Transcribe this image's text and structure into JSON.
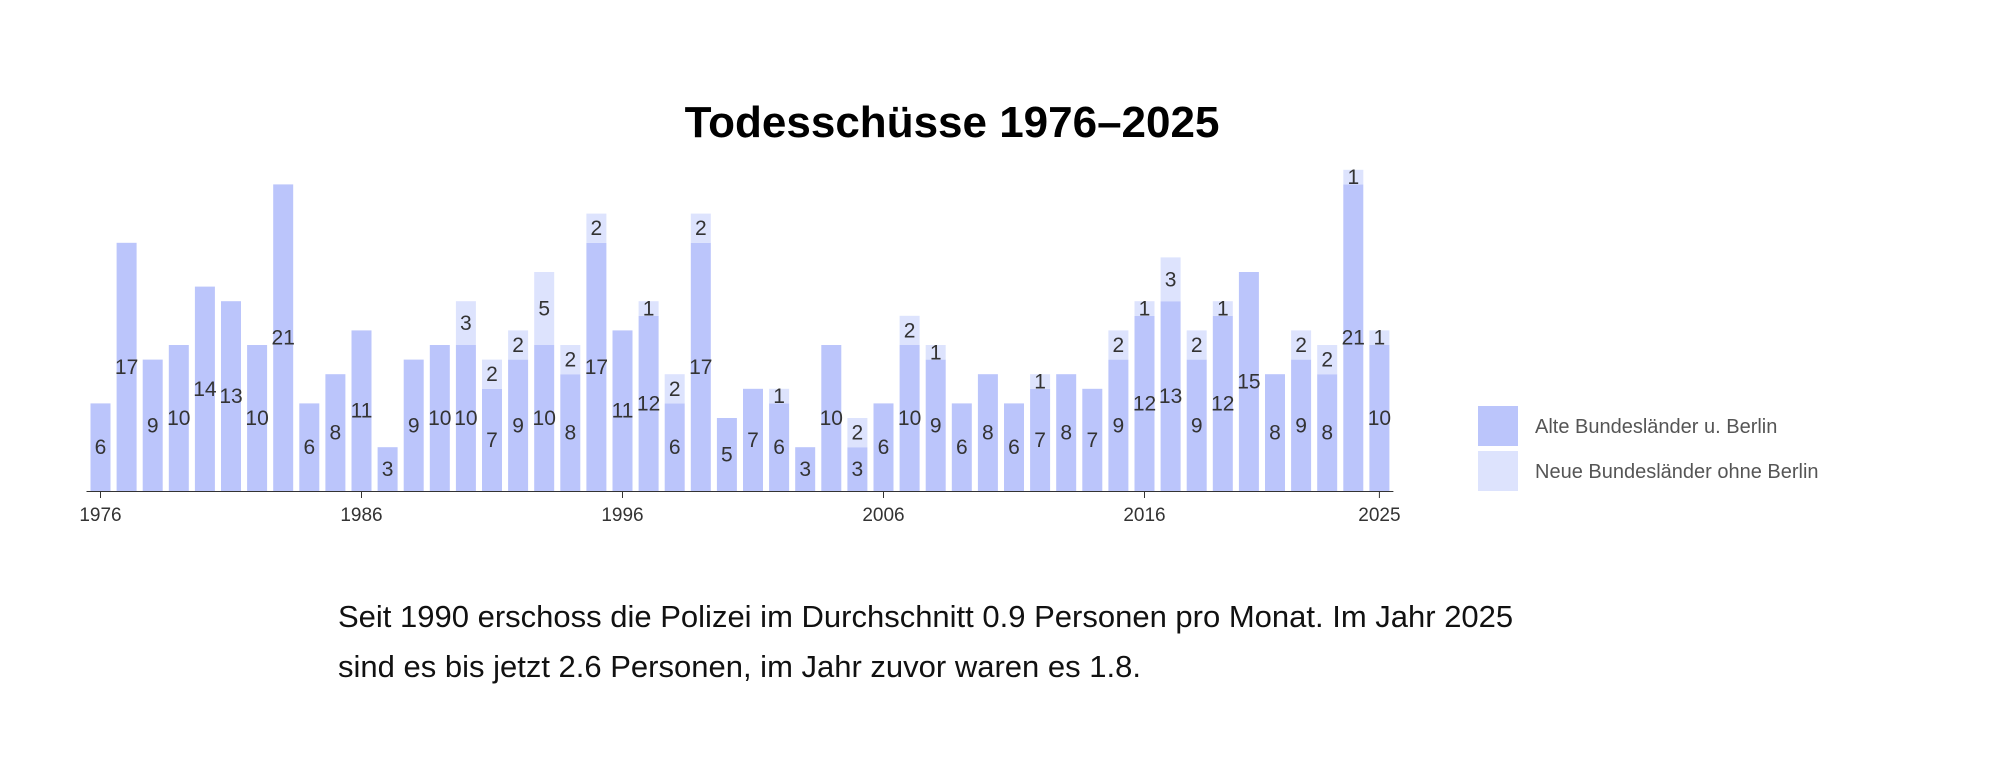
{
  "chart_data": {
    "type": "bar",
    "stacked": true,
    "title": "Todesschüsse 1976–2025",
    "x": [
      1976,
      1977,
      1978,
      1979,
      1980,
      1981,
      1982,
      1983,
      1984,
      1985,
      1986,
      1987,
      1988,
      1989,
      1990,
      1991,
      1992,
      1993,
      1994,
      1995,
      1996,
      1997,
      1998,
      1999,
      2000,
      2001,
      2002,
      2003,
      2004,
      2005,
      2006,
      2007,
      2008,
      2009,
      2010,
      2011,
      2012,
      2013,
      2014,
      2015,
      2016,
      2017,
      2018,
      2019,
      2020,
      2021,
      2022,
      2023,
      2024,
      2025
    ],
    "x_tick_labels": [
      "1976",
      "1986",
      "1996",
      "2006",
      "2016",
      "2025"
    ],
    "ylim": [
      0,
      23
    ],
    "series": [
      {
        "name": "Alte Bundesländer u. Berlin",
        "color": "#bbc5fb",
        "values": [
          6,
          17,
          9,
          10,
          14,
          13,
          10,
          21,
          6,
          8,
          11,
          3,
          9,
          10,
          10,
          7,
          9,
          10,
          8,
          17,
          11,
          12,
          6,
          17,
          5,
          7,
          6,
          3,
          10,
          3,
          6,
          10,
          9,
          6,
          8,
          6,
          7,
          8,
          7,
          9,
          12,
          13,
          9,
          12,
          15,
          8,
          9,
          8,
          21,
          10
        ]
      },
      {
        "name": "Neue Bundesländer ohne Berlin",
        "color": "#dde3fd",
        "values": [
          0,
          0,
          0,
          0,
          0,
          0,
          0,
          0,
          0,
          0,
          0,
          0,
          0,
          0,
          3,
          2,
          2,
          5,
          2,
          2,
          0,
          1,
          2,
          2,
          0,
          0,
          1,
          0,
          0,
          2,
          0,
          2,
          1,
          0,
          0,
          0,
          1,
          0,
          0,
          2,
          1,
          3,
          2,
          1,
          0,
          0,
          2,
          2,
          1,
          1
        ]
      }
    ],
    "bar_labels": {
      "Alte Bundesländer u. Berlin": [
        6,
        17,
        9,
        10,
        14,
        13,
        10,
        21,
        6,
        8,
        11,
        3,
        9,
        10,
        10,
        7,
        9,
        10,
        8,
        17,
        11,
        12,
        6,
        17,
        5,
        7,
        6,
        3,
        10,
        3,
        6,
        10,
        9,
        6,
        8,
        6,
        7,
        8,
        7,
        9,
        12,
        13,
        9,
        12,
        15,
        8,
        9,
        8,
        21,
        10
      ],
      "Neue Bundesländer ohne Berlin": [
        null,
        null,
        null,
        null,
        null,
        null,
        null,
        null,
        null,
        null,
        null,
        null,
        null,
        null,
        3,
        2,
        2,
        5,
        2,
        2,
        null,
        1,
        2,
        2,
        null,
        null,
        1,
        null,
        null,
        2,
        null,
        2,
        1,
        null,
        null,
        null,
        1,
        null,
        null,
        2,
        1,
        3,
        2,
        1,
        null,
        null,
        2,
        2,
        1,
        1
      ]
    },
    "legend_position": "right",
    "grid": false
  },
  "caption": "Seit 1990 erschoss die Polizei im Durchschnitt 0.9 Personen pro Monat. Im Jahr 2025 sind es bis jetzt 2.6 Personen, im Jahr zuvor waren es 1.8."
}
